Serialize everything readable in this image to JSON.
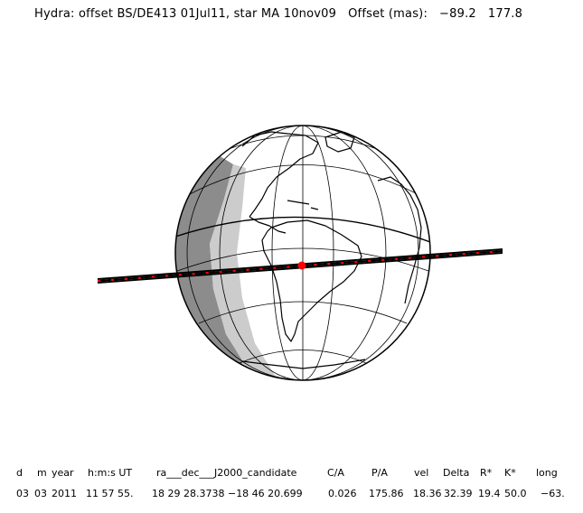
{
  "title": {
    "prefix": "Hydra: offset BS/DE413 01Jul11, star MA 10nov09",
    "offset_label": "Offset (mas):",
    "offset_x": "−89.2",
    "offset_y": "177.8"
  },
  "table": {
    "headers": [
      "d",
      "m",
      "year",
      "h:m:s UT",
      "ra___dec___J2000_candidate",
      "C/A",
      "P/A",
      "vel",
      "Delta",
      "R*",
      "K*",
      "long"
    ],
    "values": [
      "03",
      "03",
      "2011",
      "11 57 55.",
      "18 29 28.3738 −18 46 20.699",
      "0.026",
      "175.86",
      "18.36",
      "32.39",
      "19.4",
      "50.0",
      "−63."
    ]
  },
  "colors": {
    "night": "#8c8c8c",
    "twilight": "#cccccc",
    "day": "#ffffff",
    "path": "#000000",
    "path_marker": "#ff0000"
  }
}
